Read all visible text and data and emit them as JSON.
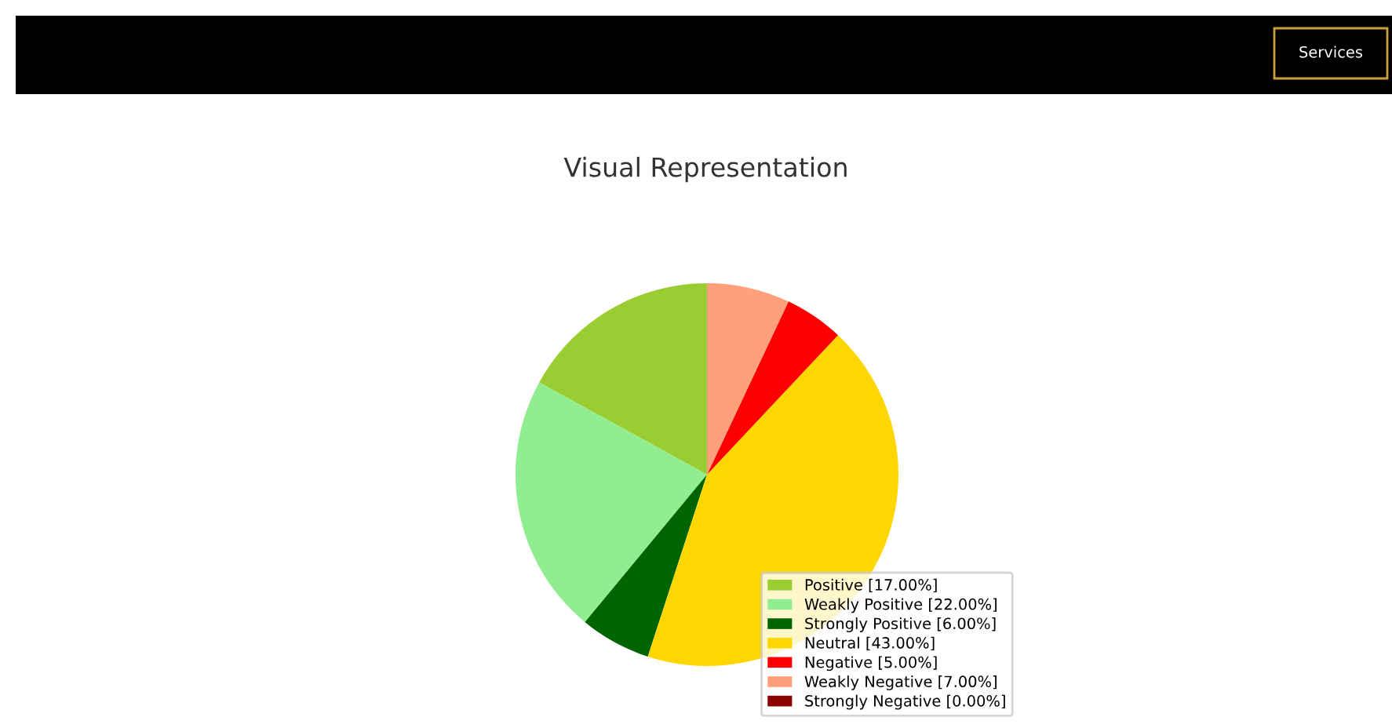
{
  "chart_data": {
    "type": "pie",
    "title": "Visual Representation",
    "categories": [
      "Positive [17.00%]",
      "Weakly Positive [22.00%]",
      "Strongly Positive [6.00%]",
      "Neutral [43.00%]",
      "Negative [5.00%]",
      "Weakly Negative [7.00%]",
      "Strongly Negative [0.00%]"
    ],
    "values": [
      17,
      22,
      6,
      43,
      5,
      7,
      0
    ],
    "colors": [
      "#9acd32",
      "#90ee90",
      "#006400",
      "#ffd700",
      "#ff0000",
      "#ffa07a",
      "#8b0000"
    ],
    "legend": "bottom right",
    "annotations": [
      "Services"
    ]
  }
}
